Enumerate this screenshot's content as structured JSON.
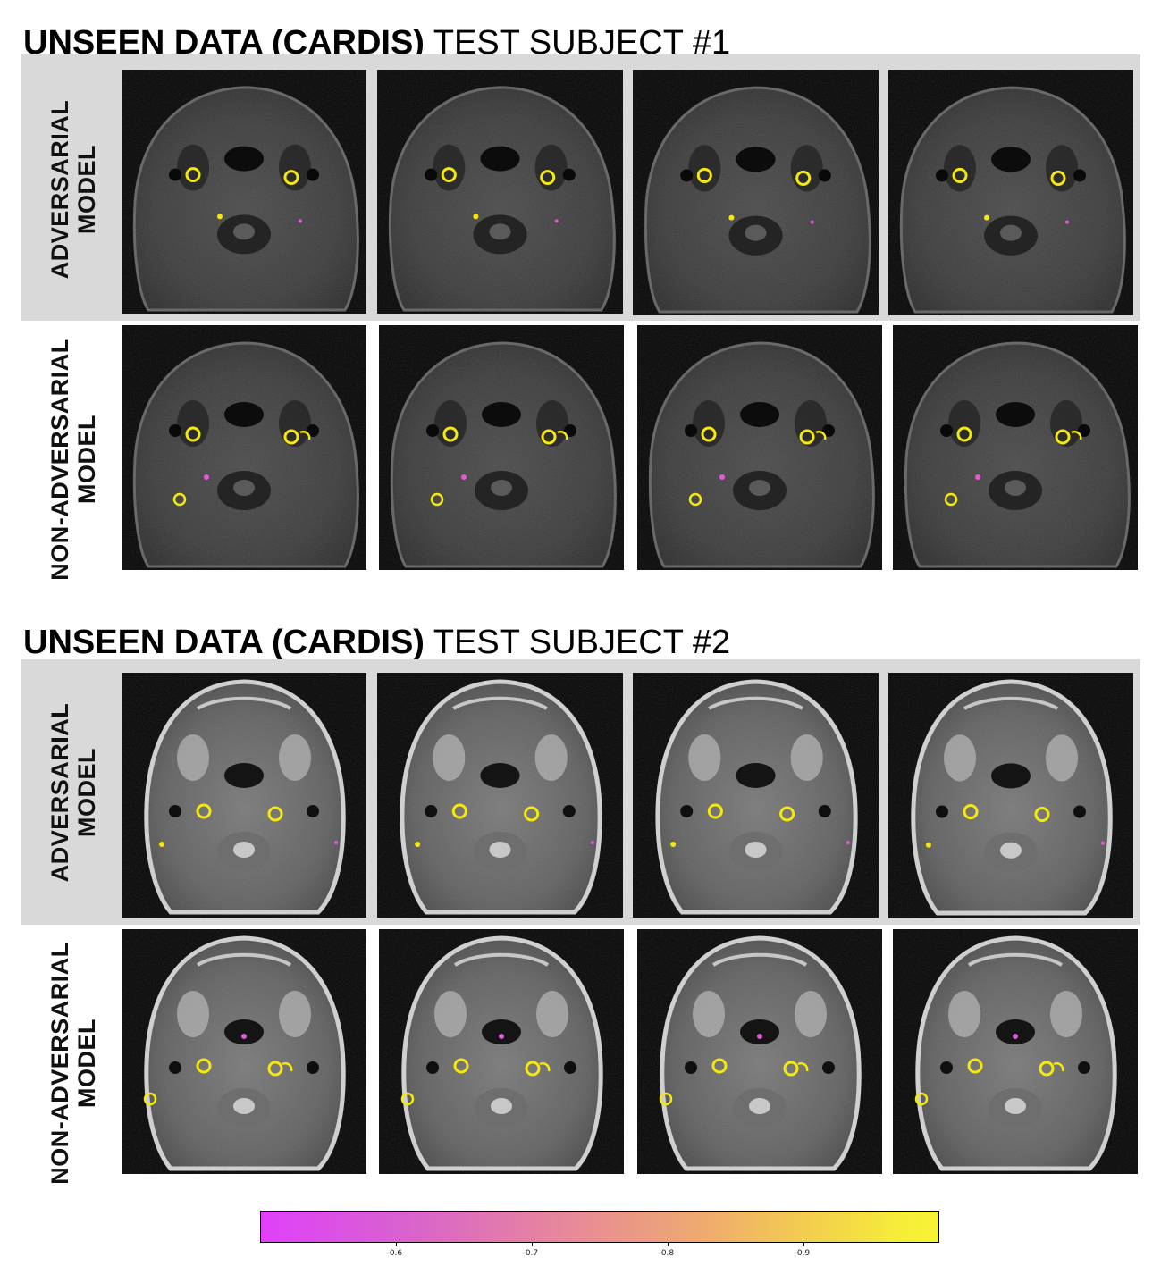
{
  "subjects": [
    {
      "title_bold": "UNSEEN DATA (CARDIS)",
      "title_rest": " TEST SUBJECT #1",
      "rows": [
        {
          "label_line1": "ADVERSARIAL",
          "label_line2": "MODEL"
        },
        {
          "label_line1": "NON-ADVERSARIAL",
          "label_line2": "MODEL"
        }
      ]
    },
    {
      "title_bold": "UNSEEN DATA (CARDIS)",
      "title_rest": " TEST SUBJECT #2",
      "rows": [
        {
          "label_line1": "ADVERSARIAL",
          "label_line2": "MODEL"
        },
        {
          "label_line1": "NON-ADVERSARIAL",
          "label_line2": "MODEL"
        }
      ]
    }
  ],
  "colorbar": {
    "min": 0.5,
    "max": 1.0,
    "ticks": [
      "0.6",
      "0.7",
      "0.8",
      "0.9"
    ],
    "color_low": "#e040fb",
    "color_high": "#f7f336"
  },
  "colors": {
    "band": "#d9d9d9",
    "contour": "#f5e80f",
    "contour_low": "#e05bd8"
  }
}
